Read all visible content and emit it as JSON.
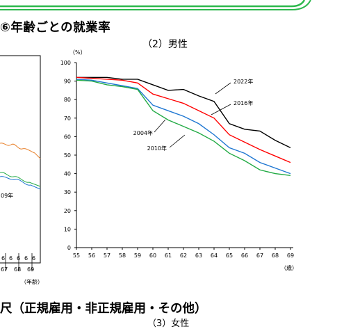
{
  "page": {
    "heading": "⑥年齢ごとの就業率",
    "left_chart": {
      "tick_fragments": [
        "6",
        "6",
        "6",
        "6",
        "6"
      ],
      "tick_labels": [
        "67",
        "68",
        "69"
      ],
      "xunit": "（年齢）",
      "series_label": "09年"
    },
    "bottom_heading": "尺（正規雇用・非正規雇用・その他）",
    "bottom_subtitle_partial": "（3）女性"
  },
  "colors": {
    "banner_green": "#2db84d",
    "s2022": "#000000",
    "s2016": "#ff0000",
    "s2010": "#1f77d2",
    "s2004": "#22aa44",
    "left_orange": "#e8802a"
  },
  "chart_data": {
    "type": "line",
    "subtitle": "（2）男性",
    "ylabel_unit": "（%）",
    "xunit": "（歳）",
    "x": [
      55,
      56,
      57,
      58,
      59,
      60,
      61,
      62,
      63,
      64,
      65,
      66,
      67,
      68,
      69
    ],
    "ylim": [
      0,
      100
    ],
    "yticks": [
      0,
      10,
      20,
      30,
      40,
      50,
      60,
      70,
      80,
      90,
      100
    ],
    "grid": false,
    "series": [
      {
        "name": "2022年",
        "color": "#000000",
        "values": [
          92,
          92,
          92,
          91,
          91,
          88,
          85,
          85.5,
          82,
          79,
          67,
          64,
          63,
          58,
          54
        ]
      },
      {
        "name": "2016年",
        "color": "#ff0000",
        "values": [
          92,
          91.5,
          91,
          90.5,
          89,
          83,
          80.5,
          78,
          74,
          70,
          61,
          57,
          53,
          49.5,
          46
        ]
      },
      {
        "name": "2010年",
        "color": "#1f77d2",
        "values": [
          91,
          90.5,
          89,
          87.5,
          86,
          77,
          74,
          71,
          67,
          61,
          54,
          51,
          46,
          43,
          40
        ]
      },
      {
        "name": "2004年",
        "color": "#22aa44",
        "values": [
          90.5,
          90,
          88,
          87,
          85.5,
          74,
          69,
          65.5,
          62,
          57.5,
          51,
          47,
          42,
          40,
          39
        ]
      }
    ],
    "legend": [
      {
        "label": "2022年",
        "color": "#000000"
      },
      {
        "label": "2016年",
        "color": "#ff0000"
      },
      {
        "label": "2004年",
        "color": "#22aa44"
      },
      {
        "label": "2010年",
        "color": "#1f77d2"
      }
    ]
  }
}
